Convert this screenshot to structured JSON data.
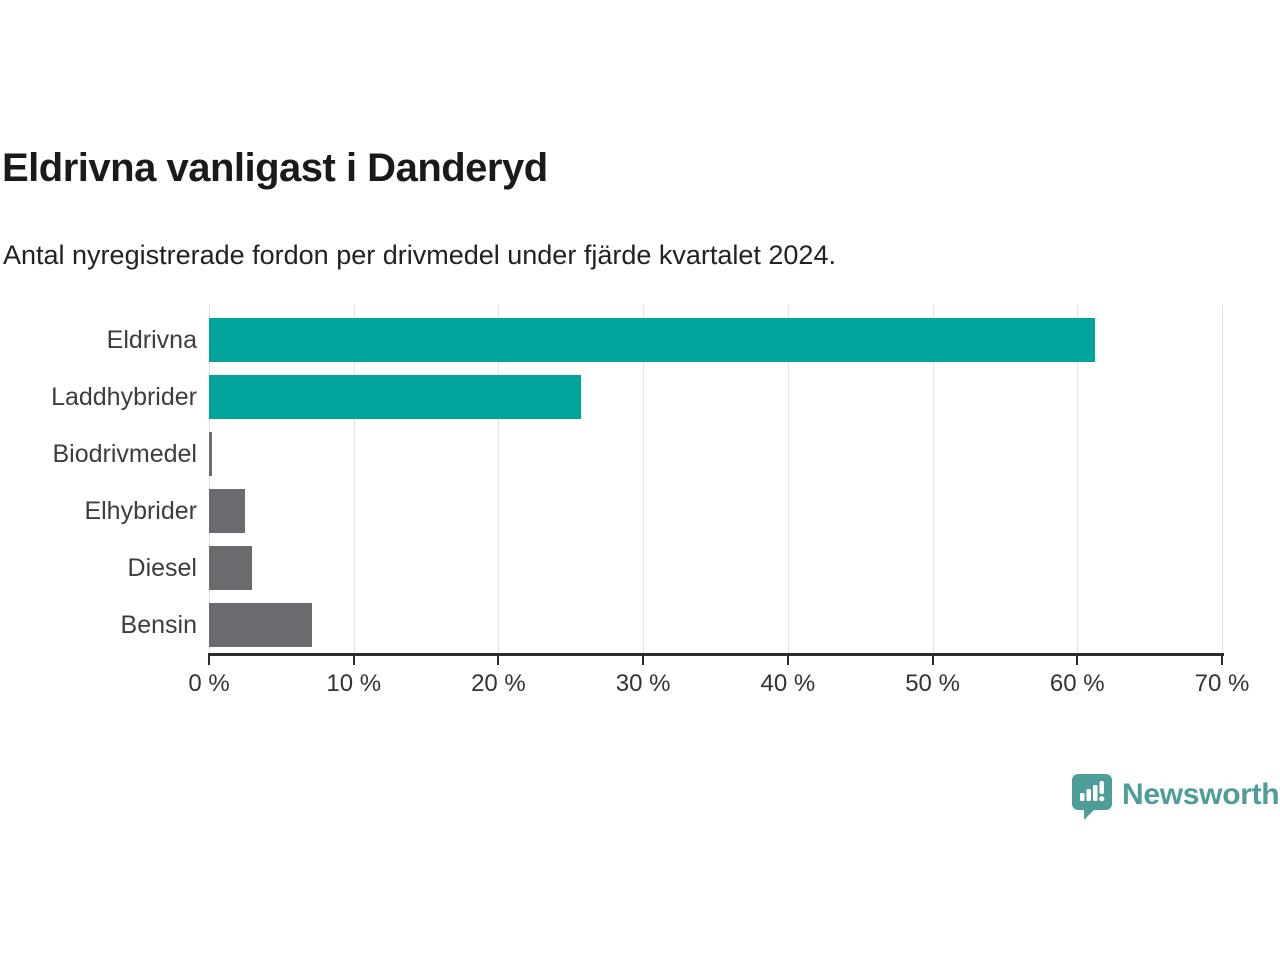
{
  "header": {
    "title": "Eldrivna vanligast i Danderyd",
    "subtitle": "Antal nyregistrerade fordon per drivmedel under fjärde kvartalet 2024."
  },
  "chart_data": {
    "type": "bar",
    "orientation": "horizontal",
    "title": "Eldrivna vanligast i Danderyd",
    "subtitle": "Antal nyregistrerade fordon per drivmedel under fjärde kvartalet 2024.",
    "categories": [
      "Eldrivna",
      "Laddhybrider",
      "Biodrivmedel",
      "Elhybrider",
      "Diesel",
      "Bensin"
    ],
    "values": [
      61.2,
      25.7,
      0.2,
      2.5,
      3.0,
      7.1
    ],
    "unit": "%",
    "xlim": [
      0,
      70
    ],
    "x_ticks": [
      0,
      10,
      20,
      30,
      40,
      50,
      60,
      70
    ],
    "x_tick_labels": [
      "0 %",
      "10 %",
      "20 %",
      "30 %",
      "40 %",
      "50 %",
      "60 %",
      "70 %"
    ],
    "bar_colors": [
      "#00a49b",
      "#00a49b",
      "#6a6a6f",
      "#6a6a6f",
      "#6a6a6f",
      "#6a6a6f"
    ],
    "accent_color": "#00a49b",
    "neutral_color": "#6a6a6f",
    "grid": "vertical",
    "legend": "none"
  },
  "branding": {
    "logo_text": "Newsworthy",
    "logo_color": "#4d9d98"
  }
}
